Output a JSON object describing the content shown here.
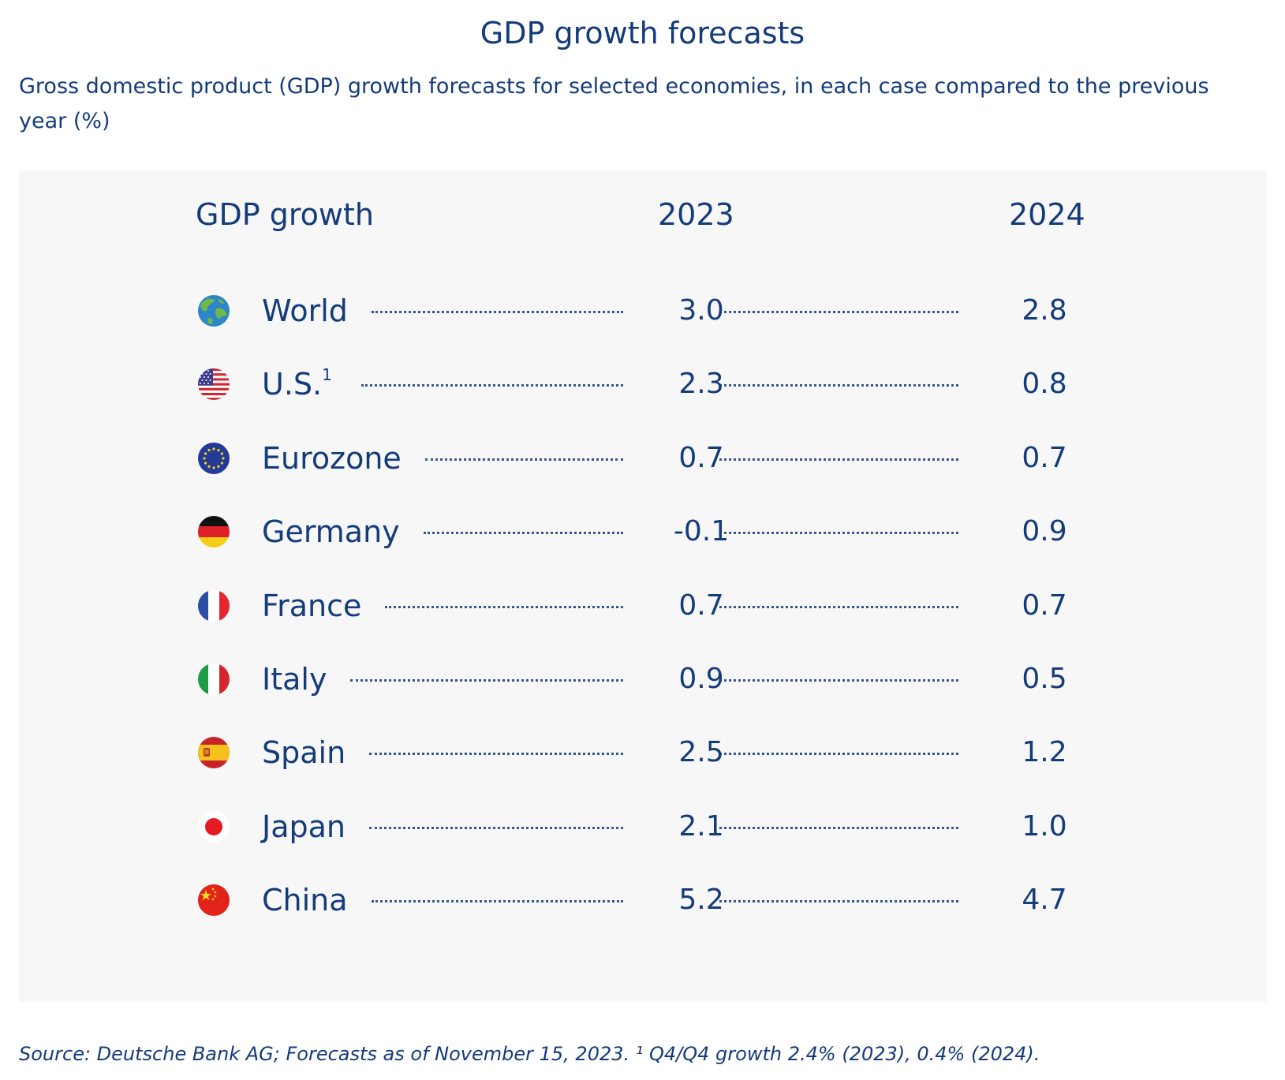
{
  "chart_data": {
    "type": "table",
    "title": "GDP growth forecasts",
    "subtitle": "Gross domestic product (GDP) growth forecasts for selected economies, in each case compared to the previous year (%)",
    "columns": [
      "GDP growth",
      "2023",
      "2024"
    ],
    "rows": [
      {
        "country": "World",
        "footnote": "",
        "flag": "globe-icon",
        "v2023": "3.0",
        "v2024": "2.8"
      },
      {
        "country": "U.S.",
        "footnote": "1",
        "flag": "us-flag-icon",
        "v2023": "2.3",
        "v2024": "0.8"
      },
      {
        "country": "Eurozone",
        "footnote": "",
        "flag": "eu-flag-icon",
        "v2023": "0.7",
        "v2024": "0.7"
      },
      {
        "country": "Germany",
        "footnote": "",
        "flag": "germany-flag-icon",
        "v2023": "-0.1",
        "v2024": "0.9"
      },
      {
        "country": "France",
        "footnote": "",
        "flag": "france-flag-icon",
        "v2023": "0.7",
        "v2024": "0.7"
      },
      {
        "country": "Italy",
        "footnote": "",
        "flag": "italy-flag-icon",
        "v2023": "0.9",
        "v2024": "0.5"
      },
      {
        "country": "Spain",
        "footnote": "",
        "flag": "spain-flag-icon",
        "v2023": "2.5",
        "v2024": "1.2"
      },
      {
        "country": "Japan",
        "footnote": "",
        "flag": "japan-flag-icon",
        "v2023": "2.1",
        "v2024": "1.0"
      },
      {
        "country": "China",
        "footnote": "",
        "flag": "china-flag-icon",
        "v2023": "5.2",
        "v2024": "4.7"
      }
    ],
    "source": "Source: Deutsche Bank AG; Forecasts as of November 15, 2023. ¹ Q4/Q4 growth 2.4% (2023), 0.4% (2024)."
  },
  "colors": {
    "text": "#143b7a",
    "panel": "#f7f7f7"
  }
}
